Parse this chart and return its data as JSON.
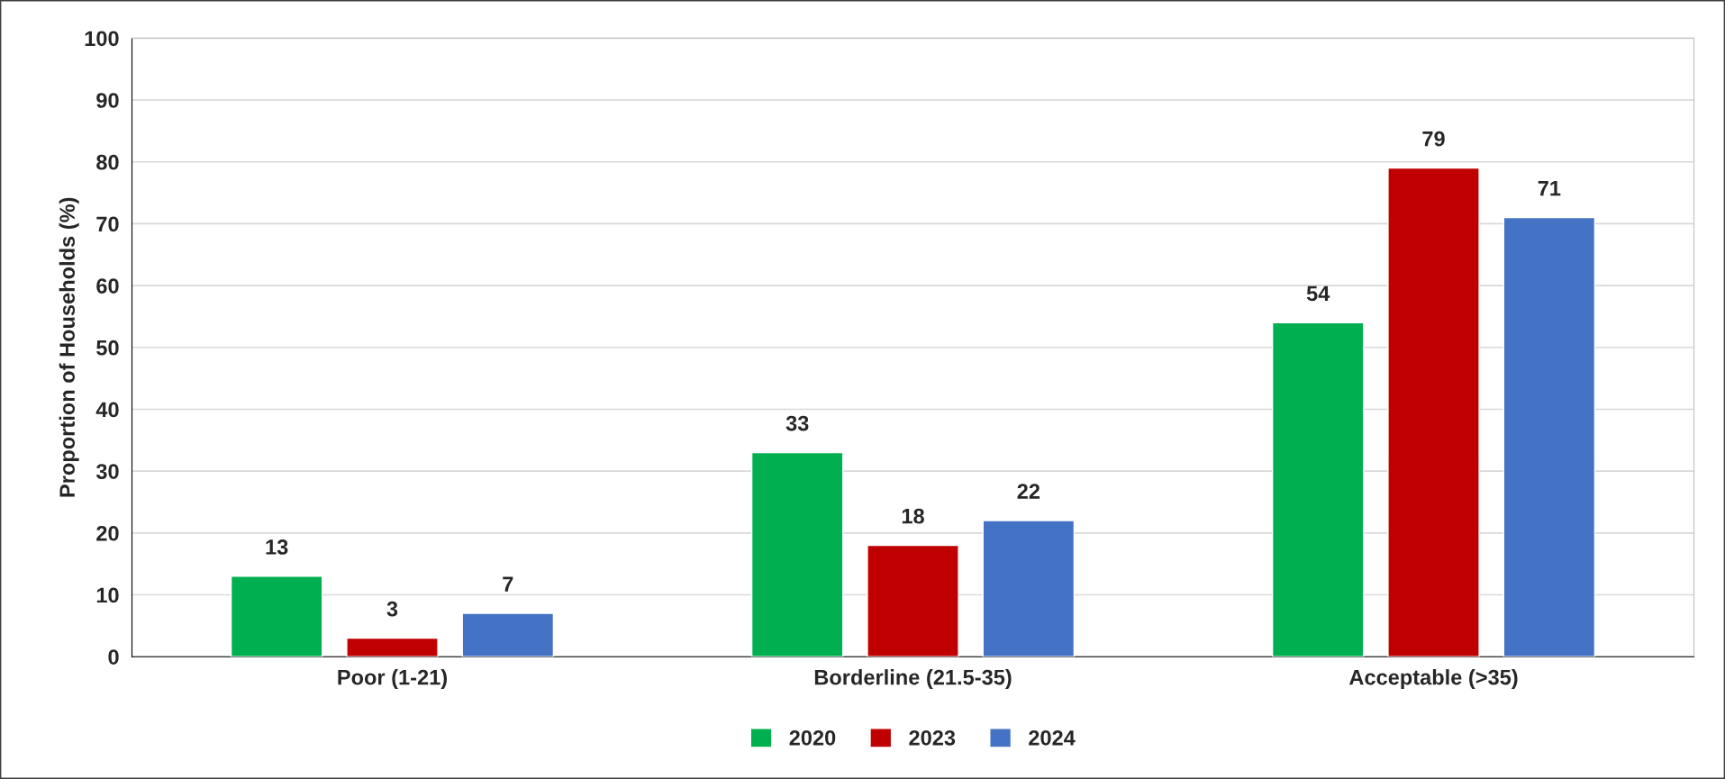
{
  "chart_data": {
    "type": "bar",
    "ylabel": "Proportion of Households (%)",
    "categories": [
      "Poor (1-21)",
      "Borderline (21.5-35)",
      "Acceptable (>35)"
    ],
    "series": [
      {
        "name": "2020",
        "color": "#00b050",
        "values": [
          13,
          33,
          54
        ]
      },
      {
        "name": "2023",
        "color": "#c00000",
        "values": [
          3,
          18,
          79
        ]
      },
      {
        "name": "2024",
        "color": "#4472c4",
        "values": [
          7,
          22,
          71
        ]
      }
    ],
    "ylim": [
      0,
      100
    ],
    "yticks": [
      0,
      10,
      20,
      30,
      40,
      50,
      60,
      70,
      80,
      90,
      100
    ],
    "grid": "y",
    "legend": "bottom",
    "data_labels": true
  }
}
